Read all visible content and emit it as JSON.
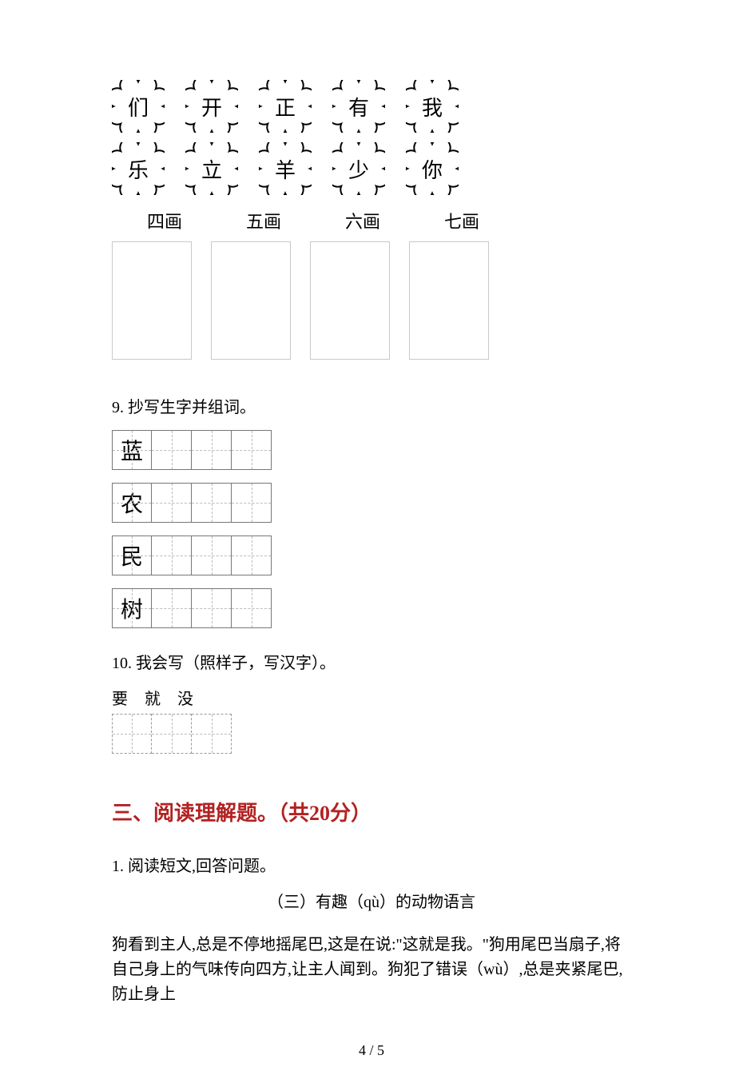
{
  "flowers": {
    "row1": [
      "们",
      "开",
      "正",
      "有",
      "我"
    ],
    "row2": [
      "乐",
      "立",
      "羊",
      "少",
      "你"
    ]
  },
  "stroke_labels": [
    "四画",
    "五画",
    "六画",
    "七画"
  ],
  "q9": {
    "text": "9. 抄写生字并组词。",
    "chars": [
      "蓝",
      "农",
      "民",
      "树"
    ],
    "cells_per_row": 4
  },
  "q10": {
    "text": "10. 我会写（照样子，写汉字）。",
    "examples": "要  就  没",
    "blank_cells": 3
  },
  "section3": {
    "title": "三、阅读理解题。（共20分）",
    "q1": "1. 阅读短文,回答问题。",
    "passage_title": "（三）有趣（qù）的动物语言",
    "passage": "狗看到主人,总是不停地摇尾巴,这是在说:\"这就是我。\"狗用尾巴当扇子,将自己身上的气味传向四方,让主人闻到。狗犯了错误（wù）,总是夹紧尾巴,防止身上"
  },
  "page_number": "4 / 5",
  "colors": {
    "heading": "#b22222",
    "text": "#000000",
    "box_border": "#c9c9c9",
    "cell_border": "#777777",
    "dashed": "#bbbbbb"
  }
}
